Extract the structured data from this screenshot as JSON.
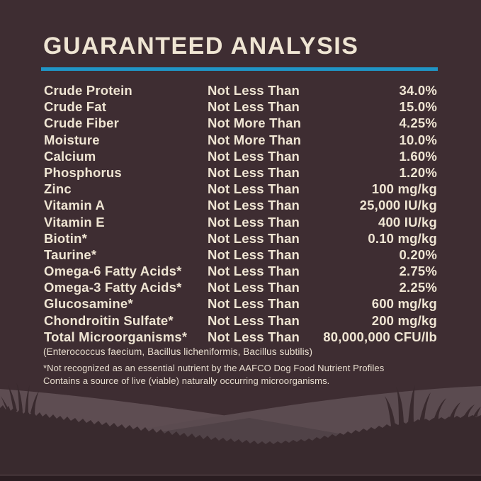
{
  "panel": {
    "title": "GUARANTEED ANALYSIS",
    "rows": [
      {
        "nutrient": "Crude Protein",
        "qualifier": "Not Less Than",
        "value": "34.0%"
      },
      {
        "nutrient": "Crude Fat",
        "qualifier": "Not Less Than",
        "value": "15.0%"
      },
      {
        "nutrient": "Crude Fiber",
        "qualifier": "Not More Than",
        "value": "4.25%"
      },
      {
        "nutrient": "Moisture",
        "qualifier": "Not More Than",
        "value": "10.0%"
      },
      {
        "nutrient": "Calcium",
        "qualifier": "Not Less Than",
        "value": "1.60%"
      },
      {
        "nutrient": "Phosphorus",
        "qualifier": "Not Less Than",
        "value": "1.20%"
      },
      {
        "nutrient": "Zinc",
        "qualifier": "Not Less Than",
        "value": "100 mg/kg"
      },
      {
        "nutrient": "Vitamin A",
        "qualifier": "Not Less Than",
        "value": "25,000 IU/kg"
      },
      {
        "nutrient": "Vitamin E",
        "qualifier": "Not Less Than",
        "value": "400 IU/kg"
      },
      {
        "nutrient": "Biotin*",
        "qualifier": "Not Less Than",
        "value": "0.10 mg/kg"
      },
      {
        "nutrient": "Taurine*",
        "qualifier": "Not Less Than",
        "value": "0.20%"
      },
      {
        "nutrient": "Omega-6 Fatty Acids*",
        "qualifier": "Not Less Than",
        "value": "2.75%"
      },
      {
        "nutrient": "Omega-3 Fatty Acids*",
        "qualifier": "Not Less Than",
        "value": "2.25%"
      },
      {
        "nutrient": "Glucosamine*",
        "qualifier": "Not Less Than",
        "value": "600 mg/kg"
      },
      {
        "nutrient": "Chondroitin Sulfate*",
        "qualifier": "Not Less Than",
        "value": "200 mg/kg"
      },
      {
        "nutrient": "Total Microorganisms*",
        "qualifier": "Not Less Than",
        "value": "80,000,000 CFU/lb"
      }
    ],
    "footnotes": {
      "organisms": "(Enterococcus faecium, Bacillus licheniformis, Bacillus subtilis)",
      "aafco": "*Not recognized as an essential nutrient by the AAFCO Dog Food Nutrient Profiles",
      "live": "Contains a source of live (viable) naturally occurring microorganisms."
    }
  },
  "colors": {
    "background": "#3E2D32",
    "text_cream": "#EFE5D3",
    "text_cream_dim": "#E9DFD0",
    "rule_blue": "#2095C6",
    "hill_light_left": "#5E4D52",
    "hill_light_right": "#5B4B50",
    "hill_mid_dark": "#504247",
    "grass_dark": "#392A2E",
    "bottom_strip": "#2A1D21",
    "bottom_strip_edge": "#5D4C50"
  }
}
